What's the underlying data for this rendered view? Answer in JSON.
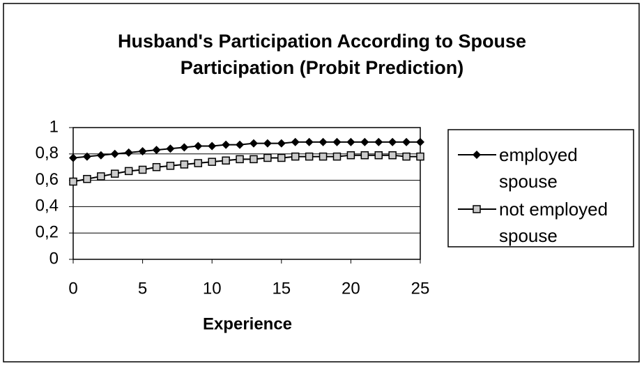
{
  "chart_data": {
    "type": "line",
    "title": "Husband's Participation According to Spouse Participation (Probit Prediction)",
    "x_label": "Experience",
    "x": [
      0,
      1,
      2,
      3,
      4,
      5,
      6,
      7,
      8,
      9,
      10,
      11,
      12,
      13,
      14,
      15,
      16,
      17,
      18,
      19,
      20,
      21,
      22,
      23,
      24,
      25
    ],
    "series": [
      {
        "name": "employed spouse",
        "color": "#000000",
        "marker": "diamond",
        "values": [
          0.77,
          0.78,
          0.79,
          0.8,
          0.81,
          0.82,
          0.83,
          0.84,
          0.85,
          0.86,
          0.86,
          0.87,
          0.87,
          0.88,
          0.88,
          0.88,
          0.89,
          0.89,
          0.89,
          0.89,
          0.89,
          0.89,
          0.89,
          0.89,
          0.89,
          0.89
        ]
      },
      {
        "name": "not employed spouse",
        "color": "#000000",
        "marker": "square",
        "values": [
          0.59,
          0.61,
          0.63,
          0.65,
          0.67,
          0.68,
          0.7,
          0.71,
          0.72,
          0.73,
          0.74,
          0.75,
          0.76,
          0.76,
          0.77,
          0.77,
          0.78,
          0.78,
          0.78,
          0.78,
          0.79,
          0.79,
          0.79,
          0.79,
          0.78,
          0.78
        ]
      }
    ],
    "xlim": [
      0,
      25
    ],
    "xticks": [
      0,
      5,
      10,
      15,
      20,
      25
    ],
    "ylim": [
      0,
      1
    ],
    "yticks": [
      0,
      {
        "value": 0.2,
        "label": "0,2"
      },
      {
        "value": 0.4,
        "label": "0,4"
      },
      {
        "value": 0.6,
        "label": "0,6"
      },
      {
        "value": 0.8,
        "label": "0,8"
      },
      1
    ],
    "grid": true,
    "legend": "right"
  }
}
